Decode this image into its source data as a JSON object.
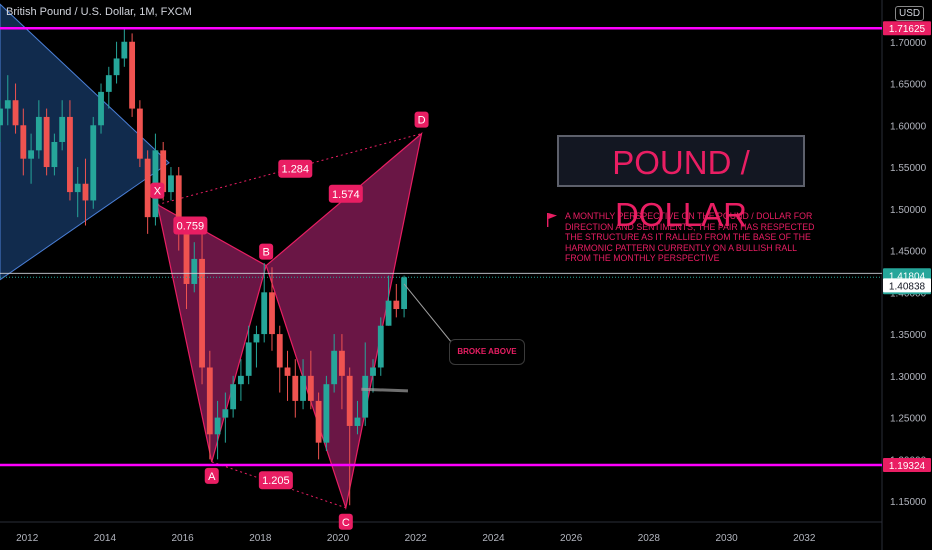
{
  "header": {
    "title": "British Pound / U.S. Dollar, 1M, FXCM",
    "currency": "USD"
  },
  "headline": "POUND / DOLLAR",
  "note": "A MONTHLY PERSPECTIVE ON THE POUND / DOLLAR FOR DIRECTION AND SENTIMENTS, THE PAIR HAS RESPECTED THE STRUCTURE AS IT RALLIED FROM THE BASE OF THE HARMONIC PATTERN CURRENTLY ON A BULLISH RALL FROM THE MONTHLY PERSPECTIVE",
  "callout": "BROKE ABOVE",
  "colors": {
    "accent": "#e91e63",
    "level_line": "#ff00ff",
    "up": "#26a69a",
    "down": "#ef5350",
    "triangle": "#1f4e8c",
    "pattern": "#8e1e5c"
  },
  "price_tags": [
    {
      "name": "upper-level-tag",
      "text": "1.71625",
      "bg": "#e91e63"
    },
    {
      "name": "last-price-tag",
      "text": "1.41804",
      "sub": "1d 8h",
      "bg": "#26a69a"
    },
    {
      "name": "crosshair-price-tag",
      "text": "1.40838",
      "bg": "#ffffff"
    },
    {
      "name": "lower-level-tag",
      "text": "1.19324",
      "bg": "#e91e63"
    }
  ],
  "chart_data": {
    "type": "candlestick",
    "title": "British Pound / U.S. Dollar, 1M, FXCM",
    "y_ticks": [
      "1.70000",
      "1.65000",
      "1.60000",
      "1.55000",
      "1.50000",
      "1.45000",
      "1.40000",
      "1.35000",
      "1.30000",
      "1.25000",
      "1.20000",
      "1.15000"
    ],
    "x_ticks": [
      "2012",
      "2014",
      "2016",
      "2018",
      "2020",
      "2022",
      "2024",
      "2026",
      "2028",
      "2030",
      "2032"
    ],
    "ylim": [
      1.125,
      1.75
    ],
    "xlim": [
      2011.3,
      2034.0
    ],
    "horizontal_levels": [
      1.71625,
      1.19324
    ],
    "last_price": 1.41804,
    "crosshair_price": 1.40838,
    "pattern_points": [
      {
        "label": "X",
        "x": 2015.35,
        "y": 1.505
      },
      {
        "label": "A",
        "x": 2016.75,
        "y": 1.197
      },
      {
        "label": "B",
        "x": 2018.15,
        "y": 1.432
      },
      {
        "label": "C",
        "x": 2020.2,
        "y": 1.142
      },
      {
        "label": "D",
        "x": 2022.15,
        "y": 1.59
      }
    ],
    "ratios": [
      {
        "text": "0.759",
        "x": 2016.2,
        "y": 1.48
      },
      {
        "text": "1.284",
        "x": 2018.9,
        "y": 1.548
      },
      {
        "text": "1.574",
        "x": 2020.2,
        "y": 1.518
      },
      {
        "text": "1.205",
        "x": 2018.4,
        "y": 1.175
      }
    ],
    "triangle": [
      [
        2011.3,
        1.745
      ],
      [
        2015.65,
        1.555
      ],
      [
        2011.3,
        1.415
      ]
    ],
    "ohlc": [
      [
        2011.3,
        1.6,
        1.63,
        1.58,
        1.62
      ],
      [
        2011.5,
        1.62,
        1.66,
        1.6,
        1.63
      ],
      [
        2011.7,
        1.63,
        1.65,
        1.59,
        1.6
      ],
      [
        2011.9,
        1.6,
        1.62,
        1.54,
        1.56
      ],
      [
        2012.1,
        1.56,
        1.59,
        1.53,
        1.57
      ],
      [
        2012.3,
        1.57,
        1.63,
        1.56,
        1.61
      ],
      [
        2012.5,
        1.61,
        1.62,
        1.54,
        1.55
      ],
      [
        2012.7,
        1.55,
        1.59,
        1.54,
        1.58
      ],
      [
        2012.9,
        1.58,
        1.63,
        1.57,
        1.61
      ],
      [
        2013.1,
        1.61,
        1.63,
        1.51,
        1.52
      ],
      [
        2013.3,
        1.52,
        1.55,
        1.49,
        1.53
      ],
      [
        2013.5,
        1.53,
        1.56,
        1.48,
        1.51
      ],
      [
        2013.7,
        1.51,
        1.61,
        1.5,
        1.6
      ],
      [
        2013.9,
        1.6,
        1.65,
        1.59,
        1.64
      ],
      [
        2014.1,
        1.64,
        1.67,
        1.62,
        1.66
      ],
      [
        2014.3,
        1.66,
        1.7,
        1.65,
        1.68
      ],
      [
        2014.5,
        1.68,
        1.717,
        1.67,
        1.7
      ],
      [
        2014.7,
        1.7,
        1.71,
        1.61,
        1.62
      ],
      [
        2014.9,
        1.62,
        1.63,
        1.55,
        1.56
      ],
      [
        2015.1,
        1.56,
        1.57,
        1.47,
        1.49
      ],
      [
        2015.3,
        1.49,
        1.59,
        1.48,
        1.57
      ],
      [
        2015.5,
        1.57,
        1.58,
        1.51,
        1.52
      ],
      [
        2015.7,
        1.52,
        1.55,
        1.51,
        1.54
      ],
      [
        2015.9,
        1.54,
        1.55,
        1.45,
        1.47
      ],
      [
        2016.1,
        1.47,
        1.48,
        1.38,
        1.41
      ],
      [
        2016.3,
        1.41,
        1.46,
        1.4,
        1.44
      ],
      [
        2016.5,
        1.44,
        1.47,
        1.29,
        1.31
      ],
      [
        2016.7,
        1.31,
        1.33,
        1.2,
        1.23
      ],
      [
        2016.9,
        1.23,
        1.27,
        1.2,
        1.25
      ],
      [
        2017.1,
        1.25,
        1.28,
        1.22,
        1.26
      ],
      [
        2017.3,
        1.26,
        1.3,
        1.25,
        1.29
      ],
      [
        2017.5,
        1.29,
        1.32,
        1.27,
        1.3
      ],
      [
        2017.7,
        1.3,
        1.36,
        1.29,
        1.34
      ],
      [
        2017.9,
        1.34,
        1.36,
        1.31,
        1.35
      ],
      [
        2018.1,
        1.35,
        1.435,
        1.34,
        1.4
      ],
      [
        2018.3,
        1.4,
        1.43,
        1.33,
        1.35
      ],
      [
        2018.5,
        1.35,
        1.36,
        1.28,
        1.31
      ],
      [
        2018.7,
        1.31,
        1.33,
        1.27,
        1.3
      ],
      [
        2018.9,
        1.3,
        1.32,
        1.25,
        1.27
      ],
      [
        2019.1,
        1.27,
        1.32,
        1.26,
        1.3
      ],
      [
        2019.3,
        1.3,
        1.33,
        1.26,
        1.27
      ],
      [
        2019.5,
        1.27,
        1.28,
        1.2,
        1.22
      ],
      [
        2019.7,
        1.22,
        1.3,
        1.21,
        1.29
      ],
      [
        2019.9,
        1.29,
        1.35,
        1.28,
        1.33
      ],
      [
        2020.1,
        1.33,
        1.35,
        1.26,
        1.3
      ],
      [
        2020.3,
        1.3,
        1.31,
        1.145,
        1.24
      ],
      [
        2020.5,
        1.24,
        1.27,
        1.23,
        1.25
      ],
      [
        2020.7,
        1.25,
        1.34,
        1.24,
        1.3
      ],
      [
        2020.9,
        1.3,
        1.32,
        1.28,
        1.31
      ],
      [
        2021.1,
        1.31,
        1.37,
        1.3,
        1.36
      ],
      [
        2021.3,
        1.36,
        1.42,
        1.36,
        1.39
      ],
      [
        2021.5,
        1.39,
        1.41,
        1.37,
        1.38
      ],
      [
        2021.7,
        1.38,
        1.42,
        1.37,
        1.418
      ]
    ]
  }
}
